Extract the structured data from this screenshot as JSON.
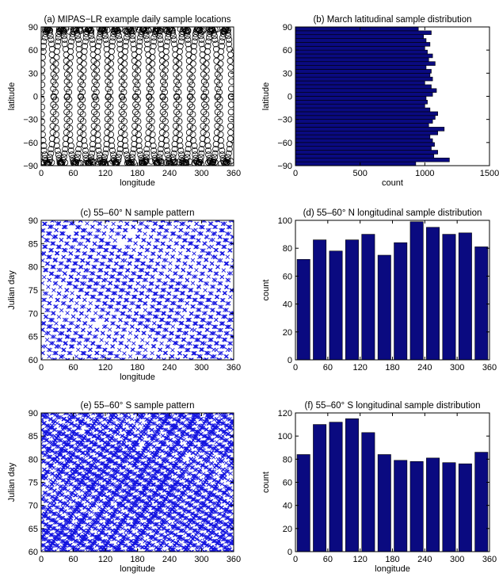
{
  "colors": {
    "bar": "#0a0a80",
    "cross": "#1515e0",
    "circle": "#000000"
  },
  "chart_data": [
    {
      "type": "scatter",
      "title": "(a) MIPAS−LR example daily sample locations",
      "xlabel": "longitude",
      "ylabel": "latitude",
      "xlim": [
        0,
        360
      ],
      "ylim": [
        -90,
        90
      ],
      "xticks": [
        "0",
        "60",
        "120",
        "180",
        "240",
        "300",
        "360"
      ],
      "yticks": [
        "−90",
        "−60",
        "−30",
        "0",
        "30",
        "60",
        "90"
      ],
      "marker": "open-circle",
      "orbits": {
        "count": 14,
        "start_longitude": 12,
        "spacing": 25.6,
        "half_swing": 11,
        "lat_max": 88
      }
    },
    {
      "type": "bar",
      "orientation": "horizontal",
      "title": "(b) March latitudinal sample distribution",
      "xlabel": "count",
      "ylabel": "latitude",
      "xlim": [
        0,
        1500
      ],
      "ylim": [
        -90,
        90
      ],
      "xticks": [
        "0",
        "500",
        "1000",
        "1500"
      ],
      "yticks": [
        "−90",
        "−60",
        "−30",
        "0",
        "30",
        "60",
        "90"
      ],
      "bin_width_deg": 5,
      "lat_centers": [
        -87.5,
        -82.5,
        -77.5,
        -72.5,
        -67.5,
        -62.5,
        -57.5,
        -52.5,
        -47.5,
        -42.5,
        -37.5,
        -32.5,
        -27.5,
        -22.5,
        -17.5,
        -12.5,
        -7.5,
        -2.5,
        2.5,
        7.5,
        12.5,
        17.5,
        22.5,
        27.5,
        32.5,
        37.5,
        42.5,
        47.5,
        52.5,
        57.5,
        62.5,
        67.5,
        72.5,
        77.5,
        82.5,
        87.5
      ],
      "values": [
        930,
        1190,
        1070,
        1100,
        1050,
        1075,
        1060,
        1040,
        1100,
        1150,
        1030,
        1060,
        1080,
        1100,
        1040,
        1000,
        1020,
        1010,
        1060,
        1090,
        1050,
        1000,
        1060,
        1040,
        1050,
        1010,
        1080,
        1030,
        1060,
        1020,
        1000,
        1040,
        1010,
        990,
        1050,
        950
      ]
    },
    {
      "type": "scatter",
      "title": "(c) 55–60° N sample pattern",
      "xlabel": "longitude",
      "ylabel": "Julian day",
      "xlim": [
        0,
        360
      ],
      "ylim": [
        60,
        90
      ],
      "xticks": [
        "0",
        "60",
        "120",
        "180",
        "240",
        "300",
        "360"
      ],
      "yticks": [
        "60",
        "65",
        "70",
        "75",
        "80",
        "85",
        "90"
      ],
      "marker": "x",
      "pattern": {
        "direction": "descending",
        "line_spacing_deg": 25.6,
        "slope_deg_per_day": 15.5,
        "points_per_day": 1.4
      }
    },
    {
      "type": "bar",
      "title": "(d) 55–60° N longitudinal sample distribution",
      "xlabel": "",
      "ylabel": "count",
      "xlim": [
        0,
        360
      ],
      "ylim": [
        0,
        100
      ],
      "xticks": [
        "0",
        "60",
        "120",
        "180",
        "240",
        "300",
        "360"
      ],
      "yticks": [
        "0",
        "20",
        "40",
        "60",
        "80",
        "100"
      ],
      "x": [
        15,
        45,
        75,
        105,
        135,
        165,
        195,
        225,
        255,
        285,
        315,
        345
      ],
      "values": [
        72,
        86,
        78,
        86,
        90,
        75,
        84,
        99,
        95,
        90,
        91,
        81
      ]
    },
    {
      "type": "scatter",
      "title": "(e) 55–60° S sample pattern",
      "xlabel": "longitude",
      "ylabel": "Julian day",
      "xlim": [
        0,
        360
      ],
      "ylim": [
        60,
        90
      ],
      "xticks": [
        "0",
        "60",
        "120",
        "180",
        "240",
        "300",
        "360"
      ],
      "yticks": [
        "60",
        "65",
        "70",
        "75",
        "80",
        "85",
        "90"
      ],
      "marker": "x",
      "pattern": {
        "direction": "descending",
        "line_spacing_deg": 25.6,
        "slope_deg_per_day": 15.5,
        "points_per_day": 2.2,
        "crossing_density": 0.55
      }
    },
    {
      "type": "bar",
      "title": "(f) 55–60° S longitudinal sample distribution",
      "xlabel": "longitude",
      "ylabel": "count",
      "xlim": [
        0,
        360
      ],
      "ylim": [
        0,
        120
      ],
      "xticks": [
        "0",
        "60",
        "120",
        "180",
        "240",
        "300",
        "360"
      ],
      "yticks": [
        "0",
        "20",
        "40",
        "60",
        "80",
        "100",
        "120"
      ],
      "x": [
        15,
        45,
        75,
        105,
        135,
        165,
        195,
        225,
        255,
        285,
        315,
        345
      ],
      "values": [
        84,
        110,
        112,
        115,
        103,
        84,
        79,
        78,
        81,
        77,
        76,
        86
      ]
    }
  ]
}
